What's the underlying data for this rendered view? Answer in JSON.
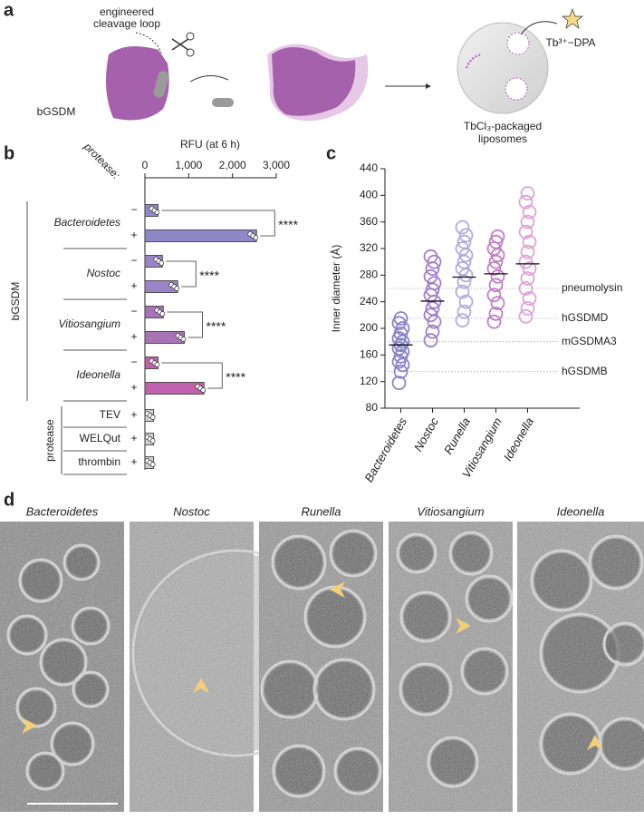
{
  "panel_labels": [
    "a",
    "b",
    "c",
    "d"
  ],
  "schematic": {
    "cleavage_label": [
      "engineered",
      "cleavage loop"
    ],
    "protein_label": "bGSDM",
    "product_label": "Tb³⁺−DPA",
    "liposome_label": [
      "TbCl₃-packaged",
      "liposomes"
    ]
  },
  "chart_data": [
    {
      "type": "bar",
      "orientation": "horizontal",
      "x_label": "RFU (at 6 h)",
      "row_header": "protease:",
      "xlim": [
        0,
        3000
      ],
      "xticks": [
        0,
        {
          "value": 1000,
          "label": "1,000"
        },
        {
          "value": 2000,
          "label": "2,000"
        },
        {
          "value": 3000,
          "label": "3,000"
        }
      ],
      "sections": [
        {
          "name": "bGSDM",
          "groups": [
            {
              "name": "Bacteroidetes",
              "color": "#8e87c8",
              "categories": [
                "−",
                "+"
              ],
              "values": [
                300,
                2550
              ],
              "significance": "****"
            },
            {
              "name": "Nostoc",
              "color": "#9a84c6",
              "categories": [
                "−",
                "+"
              ],
              "values": [
                400,
                750
              ],
              "significance": "****"
            },
            {
              "name": "Vitiosangium",
              "color": "#a872b6",
              "categories": [
                "−",
                "+"
              ],
              "values": [
                420,
                900
              ],
              "significance": "****"
            },
            {
              "name": "Ideonella",
              "color": "#c061ae",
              "categories": [
                "−",
                "+"
              ],
              "values": [
                300,
                1350
              ],
              "significance": "****"
            }
          ]
        },
        {
          "name": "protease",
          "groups": [
            {
              "name": "TEV",
              "color": "#cfcfcf",
              "categories": [
                "+"
              ],
              "values": [
                200
              ]
            },
            {
              "name": "WELQut",
              "color": "#cfcfcf",
              "categories": [
                "+"
              ],
              "values": [
                200
              ]
            },
            {
              "name": "thrombin",
              "color": "#cfcfcf",
              "categories": [
                "+"
              ],
              "values": [
                200
              ]
            }
          ]
        }
      ]
    },
    {
      "type": "strip",
      "y_label": "Inner diameter (Å)",
      "ylim": [
        80,
        440
      ],
      "yticks": [
        80,
        120,
        160,
        200,
        240,
        280,
        320,
        360,
        400,
        440
      ],
      "series": [
        {
          "name": "Bacteroidetes",
          "color": "#8a84c8",
          "mean": 175,
          "values": [
            118,
            135,
            145,
            150,
            158,
            165,
            170,
            175,
            180,
            185,
            192,
            200,
            208,
            215
          ]
        },
        {
          "name": "Nostoc",
          "color": "#a27fc8",
          "mean": 241,
          "values": [
            182,
            195,
            210,
            220,
            230,
            240,
            250,
            258,
            268,
            278,
            290,
            300,
            308
          ]
        },
        {
          "name": "Runella",
          "color": "#b1abde",
          "mean": 277,
          "values": [
            212,
            225,
            240,
            255,
            270,
            280,
            290,
            300,
            310,
            320,
            330,
            340,
            352
          ]
        },
        {
          "name": "Vitiosangium",
          "color": "#c07fc6",
          "mean": 282,
          "values": [
            210,
            222,
            238,
            250,
            265,
            278,
            290,
            300,
            310,
            320,
            330,
            338
          ]
        },
        {
          "name": "Ideonella",
          "color": "#e0a2d6",
          "mean": 297,
          "values": [
            218,
            230,
            245,
            260,
            275,
            290,
            300,
            315,
            330,
            345,
            360,
            375,
            390,
            403
          ]
        }
      ],
      "reference_lines": [
        {
          "name": "pneumolysin",
          "value": 260
        },
        {
          "name": "hGSDMD",
          "value": 215
        },
        {
          "name": "mGSDMA3",
          "value": 180
        },
        {
          "name": "hGSDMB",
          "value": 135
        }
      ]
    }
  ],
  "micrographs": {
    "labels": [
      "Bacteroidetes",
      "Nostoc",
      "Runella",
      "Vitiosangium",
      "Ideonella"
    ]
  }
}
